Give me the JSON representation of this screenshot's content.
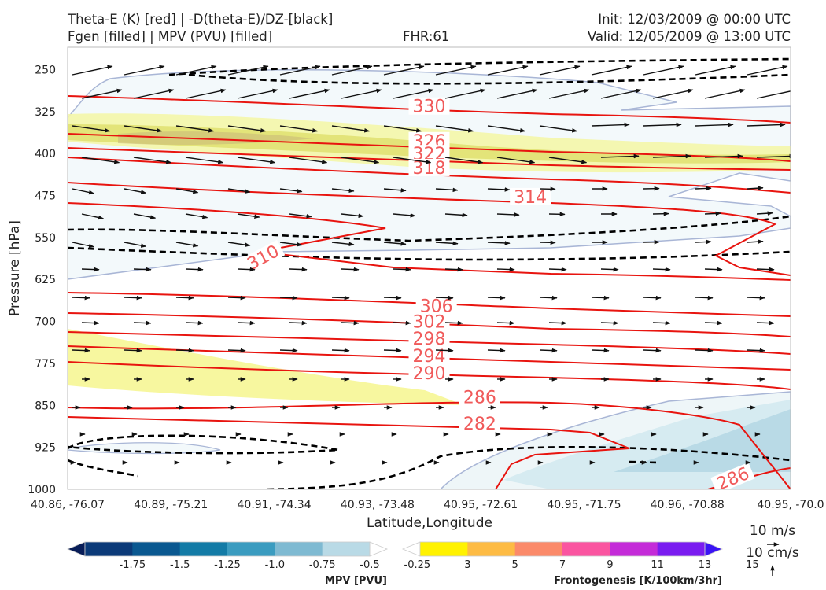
{
  "header": {
    "line1_left": "Theta-E (K) [red] | -D(theta-E)/DZ-[black]",
    "line2_left": "Fgen [filled] | MPV (PVU) [filled]",
    "fhr": "FHR:61",
    "init": "Init: 12/03/2009 @ 00:00 UTC",
    "valid": "Valid: 12/05/2009 @ 13:00 UTC"
  },
  "chart_data": {
    "type": "cross-section",
    "xlabel": "Latitude,Longitude",
    "ylabel": "Pressure [hPa]",
    "x_ticks": [
      "40.86, -76.07",
      "40.89, -75.21",
      "40.91, -74.34",
      "40.93, -73.48",
      "40.95, -72.61",
      "40.95, -71.75",
      "40.96, -70.88",
      "40.95, -70.0"
    ],
    "y_ticks": [
      250,
      325,
      400,
      475,
      550,
      625,
      700,
      775,
      850,
      925,
      1000
    ],
    "ylim": [
      1000,
      210
    ],
    "theta_e_contour_labels": [
      {
        "value": "330",
        "x": 0.5,
        "p": 315
      },
      {
        "value": "326",
        "x": 0.5,
        "p": 377
      },
      {
        "value": "322",
        "x": 0.5,
        "p": 400
      },
      {
        "value": "318",
        "x": 0.5,
        "p": 425
      },
      {
        "value": "314",
        "x": 0.64,
        "p": 477
      },
      {
        "value": "310",
        "x": 0.27,
        "p": 585
      },
      {
        "value": "306",
        "x": 0.51,
        "p": 672
      },
      {
        "value": "302",
        "x": 0.5,
        "p": 700
      },
      {
        "value": "298",
        "x": 0.5,
        "p": 730
      },
      {
        "value": "294",
        "x": 0.5,
        "p": 761
      },
      {
        "value": "290",
        "x": 0.5,
        "p": 792
      },
      {
        "value": "286",
        "x": 0.57,
        "p": 835
      },
      {
        "value": "282",
        "x": 0.57,
        "p": 882
      },
      {
        "value": "286",
        "x": 0.92,
        "p": 980
      }
    ],
    "wind_reference": {
      "horizontal": "10 m/s",
      "vertical": "10 cm/s"
    }
  },
  "colorbar_mpv": {
    "label": "MPV [PVU]",
    "ticks": [
      "-1.75",
      "-1.5",
      "-1.25",
      "-1.0",
      "-0.75",
      "-0.5",
      "-0.25"
    ],
    "colors": [
      "#081d58",
      "#0b3a78",
      "#0a5890",
      "#137ba6",
      "#3b9cc0",
      "#7fbad2",
      "#b9dae6",
      "#ffffff"
    ]
  },
  "colorbar_fgen": {
    "label": "Frontogenesis [K/100km/3hr]",
    "ticks": [
      "3",
      "5",
      "7",
      "9",
      "11",
      "13",
      "15"
    ],
    "colors": [
      "#ffffff",
      "#fff200",
      "#fdbb44",
      "#fb8a6a",
      "#fa55a0",
      "#c42bd8",
      "#7a1cf0",
      "#3b14f5"
    ]
  }
}
